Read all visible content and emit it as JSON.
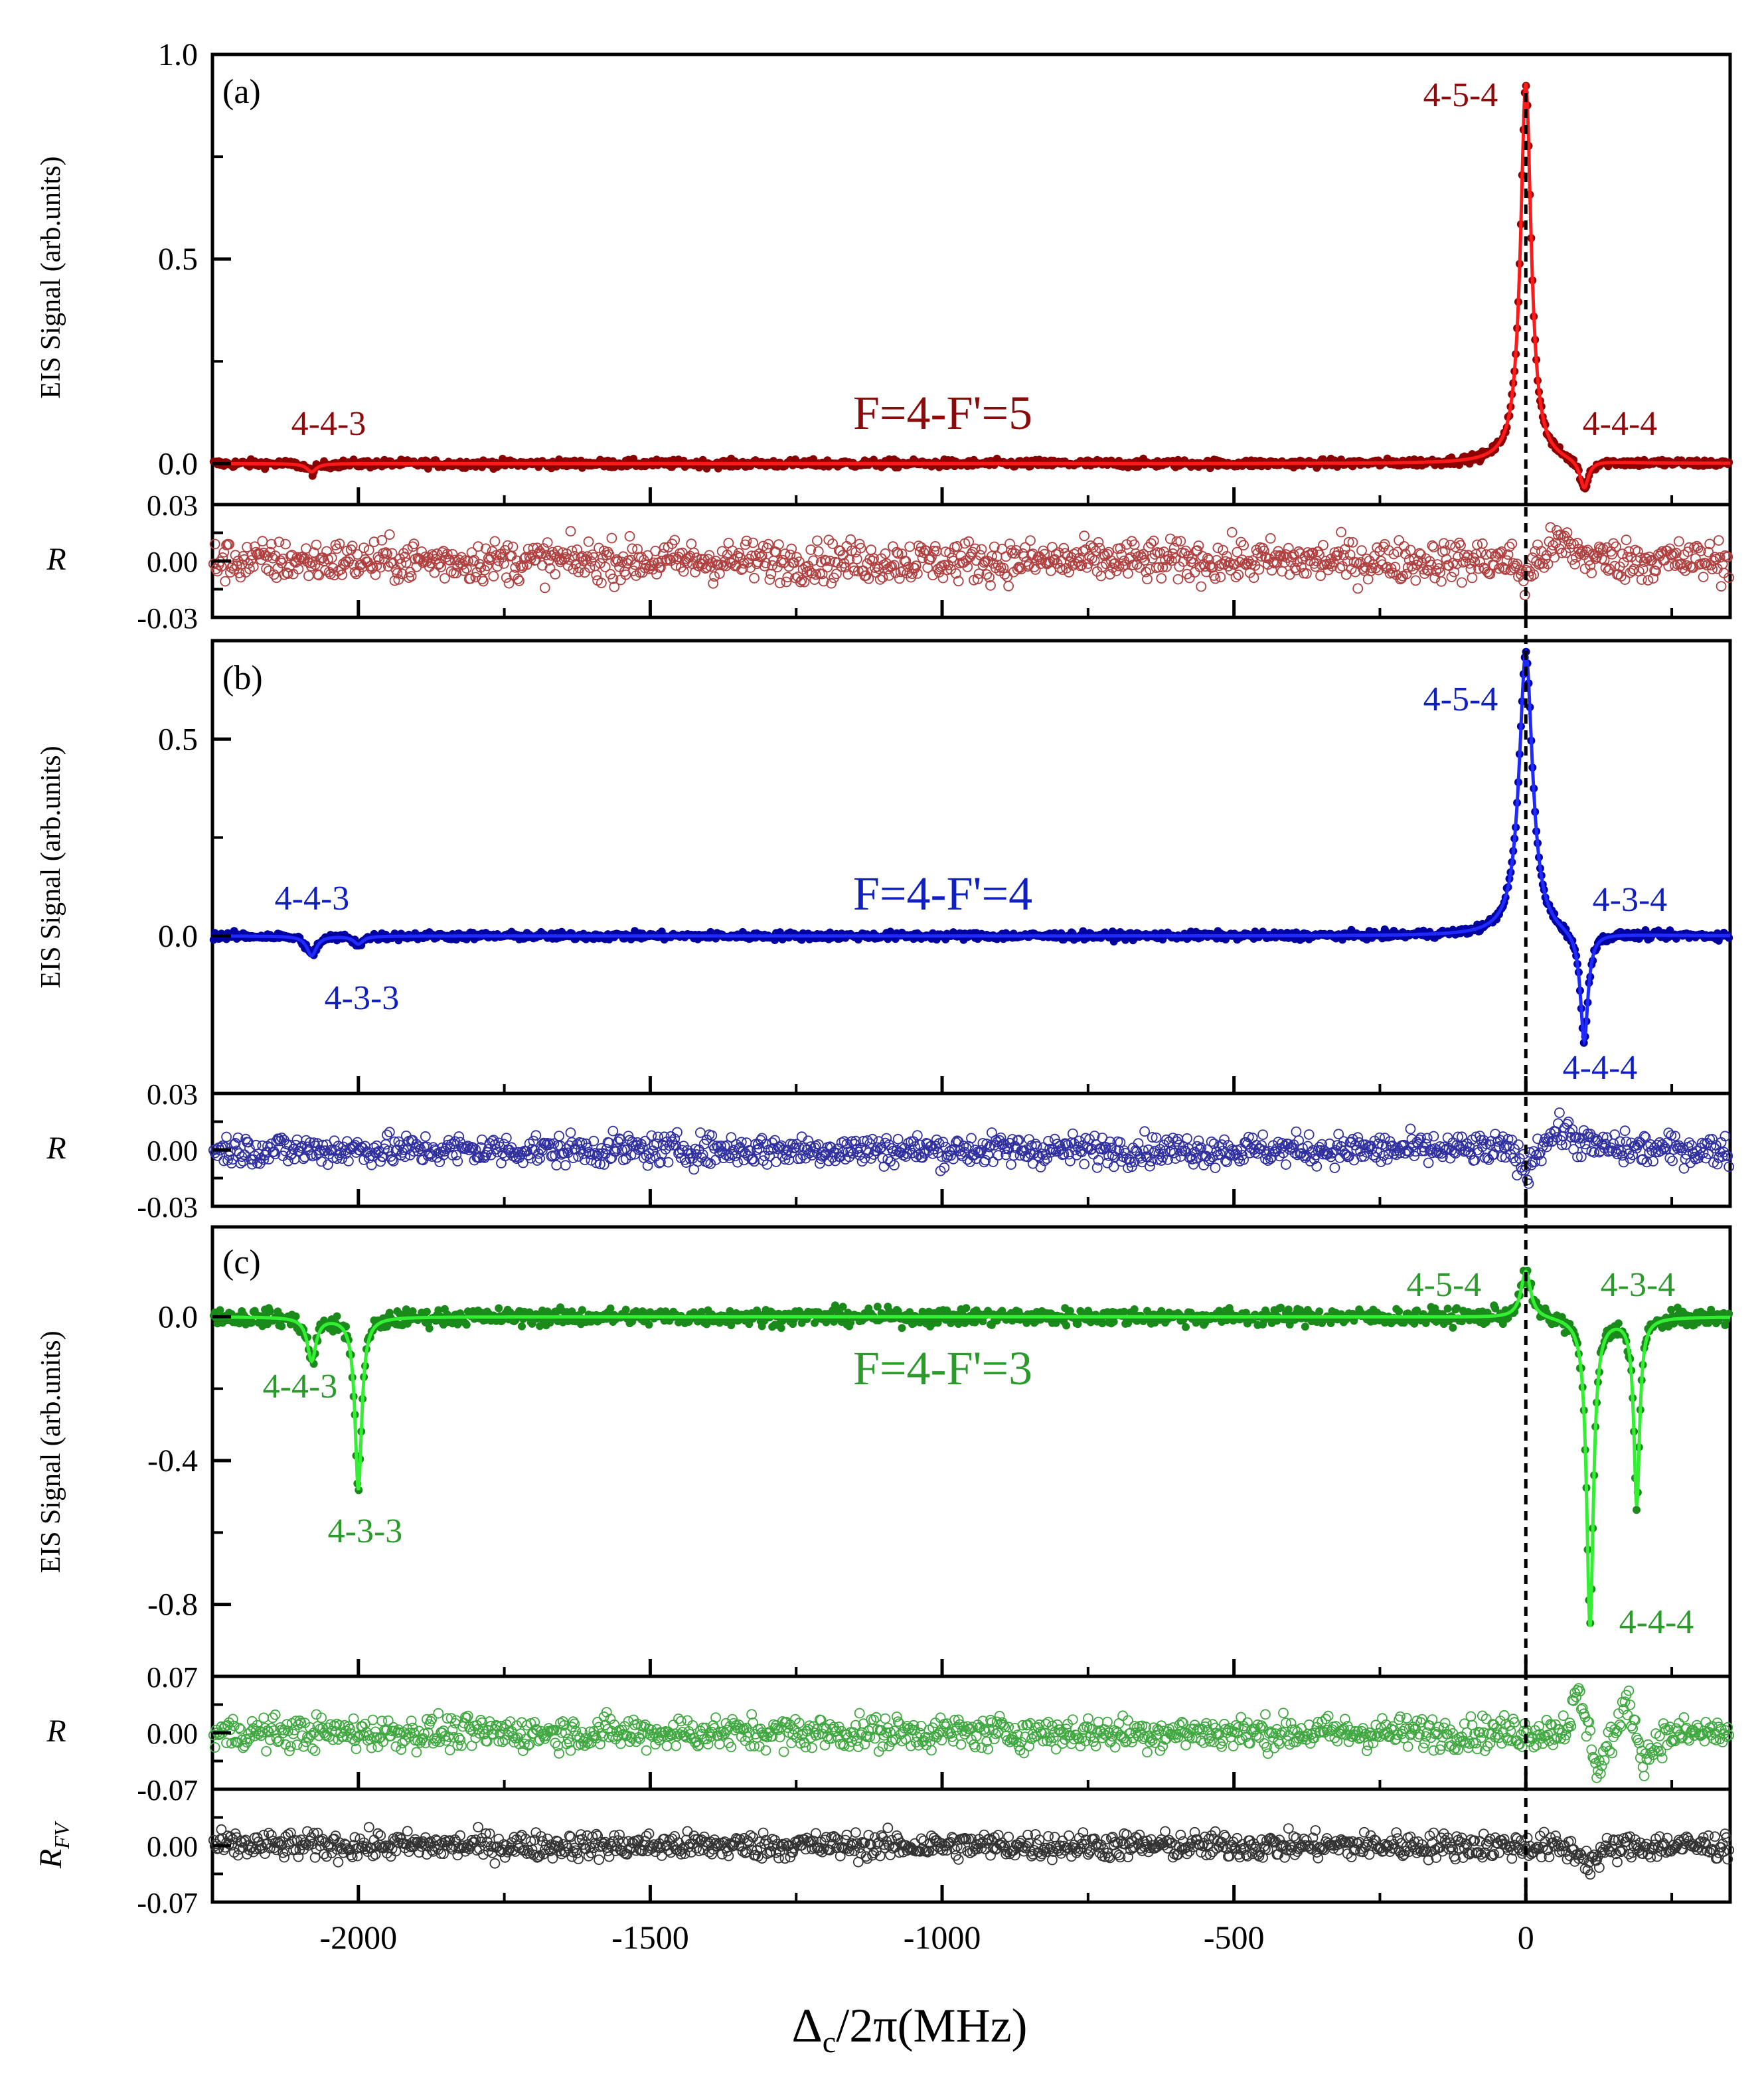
{
  "figure": {
    "xlabel": "Δc/2π(MHz)",
    "xlabel_main": "Δ",
    "xlabel_sub": "c",
    "xlabel_rest": "/2π(MHz)",
    "colors": {
      "red_dark": "#8b0000",
      "red_fit": "#ff1a1a",
      "red_label": "#8b0a0a",
      "red_resid": "#b04040",
      "blue_dark": "#0000a0",
      "blue_fit": "#1e2aff",
      "blue_label": "#1020c0",
      "blue_resid": "#3030a0",
      "green_dark": "#1a8a1a",
      "green_fit": "#33ee33",
      "green_label": "#2a9a2a",
      "green_resid": "#40a840",
      "gray_resid": "#333333",
      "axis": "#000000"
    }
  },
  "chart_data": [
    {
      "id": "a",
      "type": "line",
      "panel_label": "(a)",
      "ylabel": "EIS Signal (arb.units)",
      "transition_label": "F=4-F'=5",
      "xlim": [
        -2250,
        350
      ],
      "ylim": [
        -0.1,
        1.0
      ],
      "yticks": [
        0.0,
        0.5,
        1.0
      ],
      "ytick_labels": [
        "0.0",
        "0.5",
        "1.0"
      ],
      "x_ticks": [
        -2000,
        -1500,
        -1000,
        -500,
        0
      ],
      "peaks": [
        {
          "label": "4-5-4",
          "x": 0,
          "y": 0.93,
          "kind": "peak"
        },
        {
          "label": "4-4-3",
          "x": -2080,
          "y": -0.02,
          "kind": "dip"
        },
        {
          "label": "4-4-4",
          "x": 100,
          "y": -0.07,
          "kind": "dip"
        }
      ],
      "series": [
        {
          "name": "data",
          "model": "lorentz_sum",
          "components": [
            {
              "x0": 0,
              "amp": 0.93,
              "w": 11
            },
            {
              "x0": 100,
              "amp": -0.07,
              "w": 9
            },
            {
              "x0": -2080,
              "amp": -0.02,
              "w": 10
            }
          ]
        }
      ]
    },
    {
      "id": "a_resid",
      "type": "scatter",
      "ylabel": "R",
      "ylim": [
        -0.03,
        0.03
      ],
      "yticks": [
        -0.03,
        0.0,
        0.03
      ],
      "ytick_labels": [
        "-0.03",
        "0.00",
        "0.03"
      ],
      "noise_amplitude": 0.008,
      "features": [
        {
          "x0": 0,
          "amp": -0.012,
          "w": 10
        },
        {
          "x0": 60,
          "amp": 0.009,
          "w": 30
        }
      ]
    },
    {
      "id": "b",
      "type": "line",
      "panel_label": "(b)",
      "ylabel": "EIS Signal (arb.units)",
      "transition_label": "F=4-F'=4",
      "xlim": [
        -2250,
        350
      ],
      "ylim": [
        -0.4,
        0.75
      ],
      "yticks": [
        0.0,
        0.5
      ],
      "ytick_labels": [
        "0.0",
        "0.5"
      ],
      "x_ticks": [
        -2000,
        -1500,
        -1000,
        -500,
        0
      ],
      "peaks": [
        {
          "label": "4-5-4",
          "x": 0,
          "y": 0.72,
          "kind": "peak"
        },
        {
          "label": "4-4-3",
          "x": -2080,
          "y": -0.05,
          "kind": "dip"
        },
        {
          "label": "4-3-3",
          "x": -2000,
          "y": -0.02,
          "kind": "dip"
        },
        {
          "label": "4-3-4",
          "x": 180,
          "y": 0.0,
          "kind": "dip"
        },
        {
          "label": "4-4-4",
          "x": 100,
          "y": -0.28,
          "kind": "dip"
        }
      ],
      "series": [
        {
          "name": "data",
          "model": "lorentz_sum",
          "components": [
            {
              "x0": 0,
              "amp": 0.72,
              "w": 14
            },
            {
              "x0": 100,
              "amp": -0.28,
              "w": 8
            },
            {
              "x0": -2080,
              "amp": -0.05,
              "w": 10
            },
            {
              "x0": -2000,
              "amp": -0.02,
              "w": 10
            }
          ]
        }
      ]
    },
    {
      "id": "b_resid",
      "type": "scatter",
      "ylabel": "R",
      "ylim": [
        -0.03,
        0.03
      ],
      "yticks": [
        -0.03,
        0.0,
        0.03
      ],
      "ytick_labels": [
        "-0.03",
        "0.00",
        "0.03"
      ],
      "noise_amplitude": 0.006,
      "features": [
        {
          "x0": 0,
          "amp": -0.014,
          "w": 10
        },
        {
          "x0": 60,
          "amp": 0.01,
          "w": 30
        }
      ]
    },
    {
      "id": "c",
      "type": "line",
      "panel_label": "(c)",
      "ylabel": "EIS Signal (arb.units)",
      "transition_label": "F=4-F'=3",
      "xlim": [
        -2250,
        350
      ],
      "ylim": [
        -1.0,
        0.25
      ],
      "yticks": [
        -0.8,
        -0.4,
        0.0
      ],
      "ytick_labels": [
        "-0.8",
        "-0.4",
        "0.0"
      ],
      "x_ticks": [
        -2000,
        -1500,
        -1000,
        -500,
        0
      ],
      "peaks": [
        {
          "label": "4-5-4",
          "x": 0,
          "y": 0.13,
          "kind": "peak"
        },
        {
          "label": "4-4-3",
          "x": -2080,
          "y": -0.12,
          "kind": "dip"
        },
        {
          "label": "4-3-3",
          "x": -2000,
          "y": -0.48,
          "kind": "dip"
        },
        {
          "label": "4-3-4",
          "x": 190,
          "y": -0.52,
          "kind": "dip"
        },
        {
          "label": "4-4-4",
          "x": 110,
          "y": -0.86,
          "kind": "dip"
        }
      ],
      "series": [
        {
          "name": "data",
          "model": "lorentz_sum",
          "components": [
            {
              "x0": 0,
              "amp": 0.13,
              "w": 10
            },
            {
              "x0": 110,
              "amp": -0.86,
              "w": 7
            },
            {
              "x0": 190,
              "amp": -0.52,
              "w": 6
            },
            {
              "x0": -2080,
              "amp": -0.12,
              "w": 9
            },
            {
              "x0": -2000,
              "amp": -0.48,
              "w": 7
            }
          ]
        }
      ]
    },
    {
      "id": "c_resid",
      "type": "scatter",
      "ylabel": "R",
      "ylim": [
        -0.07,
        0.07
      ],
      "yticks": [
        -0.07,
        0.0,
        0.07
      ],
      "ytick_labels": [
        "-0.07",
        "0.00",
        "0.07"
      ],
      "noise_amplitude": 0.015,
      "features": [
        {
          "x0": 90,
          "amp": 0.05,
          "w": 12
        },
        {
          "x0": 125,
          "amp": -0.05,
          "w": 12
        },
        {
          "x0": 175,
          "amp": 0.05,
          "w": 10
        },
        {
          "x0": 205,
          "amp": -0.035,
          "w": 15
        }
      ]
    },
    {
      "id": "c_resid_fv",
      "type": "scatter",
      "ylabel": "R",
      "ylabel_sub": "FV",
      "ylim": [
        -0.07,
        0.07
      ],
      "yticks": [
        -0.07,
        0.0,
        0.07
      ],
      "ytick_labels": [
        "-0.07",
        "0.00",
        "0.07"
      ],
      "noise_amplitude": 0.012,
      "features": [
        {
          "x0": 110,
          "amp": -0.02,
          "w": 20
        }
      ]
    }
  ]
}
